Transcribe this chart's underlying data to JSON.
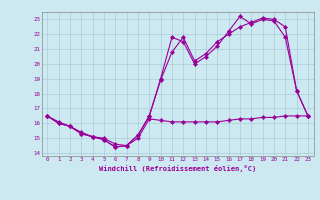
{
  "xlabel": "Windchill (Refroidissement éolien,°C)",
  "background_color": "#cce8f0",
  "grid_color": "#aaccd8",
  "line_color": "#990099",
  "xlim": [
    -0.5,
    23.5
  ],
  "ylim": [
    13.8,
    23.5
  ],
  "yticks": [
    14,
    15,
    16,
    17,
    18,
    19,
    20,
    21,
    22,
    23
  ],
  "xticks": [
    0,
    1,
    2,
    3,
    4,
    5,
    6,
    7,
    8,
    9,
    10,
    11,
    12,
    13,
    14,
    15,
    16,
    17,
    18,
    19,
    20,
    21,
    22,
    23
  ],
  "hours": [
    0,
    1,
    2,
    3,
    4,
    5,
    6,
    7,
    8,
    9,
    10,
    11,
    12,
    13,
    14,
    15,
    16,
    17,
    18,
    19,
    20,
    21,
    22,
    23
  ],
  "line1": [
    16.5,
    16.0,
    15.8,
    15.3,
    15.1,
    14.9,
    14.4,
    14.5,
    15.2,
    16.5,
    19.0,
    21.8,
    21.5,
    20.0,
    20.5,
    21.2,
    22.2,
    23.2,
    22.7,
    23.0,
    22.9,
    21.8,
    18.2,
    16.5
  ],
  "line2": [
    16.5,
    16.1,
    15.8,
    15.3,
    15.1,
    14.9,
    14.4,
    14.5,
    15.2,
    16.5,
    18.9,
    20.8,
    21.8,
    20.2,
    20.7,
    21.5,
    22.0,
    22.5,
    22.8,
    23.1,
    23.0,
    22.5,
    18.2,
    16.5
  ],
  "line3": [
    16.5,
    16.0,
    15.8,
    15.4,
    15.1,
    15.0,
    14.6,
    14.5,
    15.0,
    16.3,
    16.2,
    16.1,
    16.1,
    16.1,
    16.1,
    16.1,
    16.2,
    16.3,
    16.3,
    16.4,
    16.4,
    16.5,
    16.5,
    16.5
  ]
}
